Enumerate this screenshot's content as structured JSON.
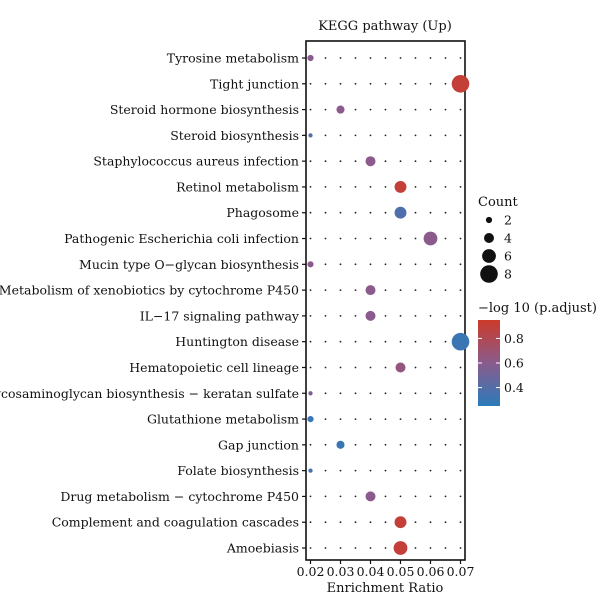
{
  "chart_data": {
    "type": "scatter",
    "title": "KEGG pathway (Up)",
    "xlabel": "Enrichment Ratio",
    "ylabel": "",
    "xlim": [
      0.0185,
      0.0715
    ],
    "x_ticks": [
      "0.02",
      "0.03",
      "0.04",
      "0.05",
      "0.06",
      "0.07"
    ],
    "x_tick_values": [
      0.02,
      0.03,
      0.04,
      0.05,
      0.06,
      0.07
    ],
    "grid": false,
    "colors": {
      "low": "#2b7bba",
      "mid": "#8a5b8c",
      "high": "#cc3a2a",
      "background_dot": "#222222"
    },
    "categories": [
      "Tyrosine metabolism",
      "Tight junction",
      "Steroid hormone biosynthesis",
      "Steroid biosynthesis",
      "Staphylococcus aureus infection",
      "Retinol metabolism",
      "Phagosome",
      "Pathogenic Escherichia coli infection",
      "Mucin type O−glycan biosynthesis",
      "Metabolism of xenobiotics by cytochrome P450",
      "IL−17 signaling pathway",
      "Huntington disease",
      "Hematopoietic cell lineage",
      "Glycosaminoglycan biosynthesis − keratan sulfate",
      "Glutathione metabolism",
      "Gap junction",
      "Folate biosynthesis",
      "Drug metabolism − cytochrome P450",
      "Complement and coagulation cascades",
      "Amoebiasis"
    ],
    "points": [
      {
        "pathway": "Tyrosine metabolism",
        "x": 0.02,
        "count": 2,
        "p_adjust_neglog10": 0.6
      },
      {
        "pathway": "Tight junction",
        "x": 0.07,
        "count": 8,
        "p_adjust_neglog10": 0.9
      },
      {
        "pathway": "Steroid hormone biosynthesis",
        "x": 0.03,
        "count": 3,
        "p_adjust_neglog10": 0.6
      },
      {
        "pathway": "Steroid biosynthesis",
        "x": 0.02,
        "count": 1,
        "p_adjust_neglog10": 0.4
      },
      {
        "pathway": "Staphylococcus aureus infection",
        "x": 0.04,
        "count": 4,
        "p_adjust_neglog10": 0.6
      },
      {
        "pathway": "Retinol metabolism",
        "x": 0.05,
        "count": 5,
        "p_adjust_neglog10": 0.9
      },
      {
        "pathway": "Phagosome",
        "x": 0.05,
        "count": 5,
        "p_adjust_neglog10": 0.38
      },
      {
        "pathway": "Pathogenic Escherichia coli infection",
        "x": 0.06,
        "count": 6,
        "p_adjust_neglog10": 0.6
      },
      {
        "pathway": "Mucin type O−glycan biosynthesis",
        "x": 0.02,
        "count": 2,
        "p_adjust_neglog10": 0.6
      },
      {
        "pathway": "Metabolism of xenobiotics by cytochrome P450",
        "x": 0.04,
        "count": 4,
        "p_adjust_neglog10": 0.6
      },
      {
        "pathway": "IL−17 signaling pathway",
        "x": 0.04,
        "count": 4,
        "p_adjust_neglog10": 0.6
      },
      {
        "pathway": "Huntington disease",
        "x": 0.07,
        "count": 8,
        "p_adjust_neglog10": 0.3
      },
      {
        "pathway": "Hematopoietic cell lineage",
        "x": 0.05,
        "count": 4,
        "p_adjust_neglog10": 0.65
      },
      {
        "pathway": "Glycosaminoglycan biosynthesis − keratan sulfate",
        "x": 0.02,
        "count": 1,
        "p_adjust_neglog10": 0.55
      },
      {
        "pathway": "Glutathione metabolism",
        "x": 0.02,
        "count": 2,
        "p_adjust_neglog10": 0.3
      },
      {
        "pathway": "Gap junction",
        "x": 0.03,
        "count": 3,
        "p_adjust_neglog10": 0.3
      },
      {
        "pathway": "Folate biosynthesis",
        "x": 0.02,
        "count": 1,
        "p_adjust_neglog10": 0.35
      },
      {
        "pathway": "Drug metabolism − cytochrome P450",
        "x": 0.04,
        "count": 4,
        "p_adjust_neglog10": 0.6
      },
      {
        "pathway": "Complement and coagulation cascades",
        "x": 0.05,
        "count": 5,
        "p_adjust_neglog10": 0.9
      },
      {
        "pathway": "Amoebiasis",
        "x": 0.05,
        "count": 6,
        "p_adjust_neglog10": 0.9
      }
    ],
    "background_dots": {
      "x_values": [
        0.02,
        0.025,
        0.03,
        0.035,
        0.04,
        0.045,
        0.05,
        0.055,
        0.06,
        0.065,
        0.07
      ]
    },
    "legend_size": {
      "title": "Count",
      "entries": [
        {
          "label": "2",
          "count": 2
        },
        {
          "label": "4",
          "count": 4
        },
        {
          "label": "6",
          "count": 6
        },
        {
          "label": "8",
          "count": 8
        }
      ],
      "placement": "right"
    },
    "legend_color": {
      "title": "−log 10 (p.adjust)",
      "min": 0.25,
      "max": 0.95,
      "ticks": [
        "0.8",
        "0.6",
        "0.4"
      ],
      "tick_values": [
        0.8,
        0.6,
        0.4
      ],
      "placement": "right"
    }
  }
}
